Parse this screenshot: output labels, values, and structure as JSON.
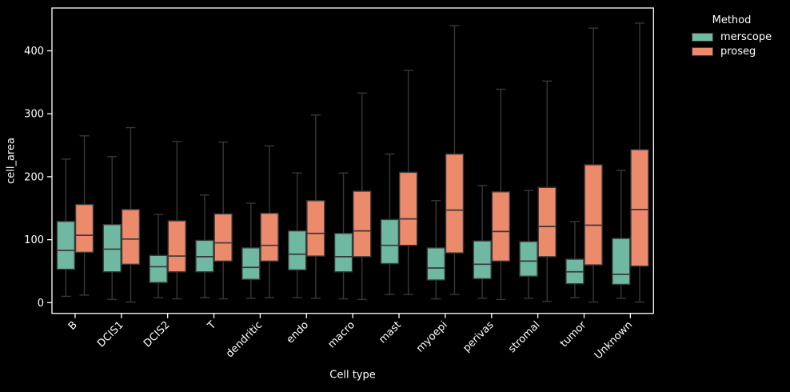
{
  "chart_data": {
    "type": "boxplot-grouped",
    "xlabel": "Cell type",
    "ylabel": "cell_area",
    "legend_title": "Method",
    "legend_position": "upper right outside",
    "background": "#000000",
    "axis_color": "#ffffff",
    "box_edge_color": "#383838",
    "ylim": [
      -17,
      468
    ],
    "yticks": [
      0,
      100,
      200,
      300,
      400
    ],
    "categories": [
      "B",
      "DCIS1",
      "DCIS2",
      "T",
      "dendritic",
      "endo",
      "macro",
      "mast",
      "myoepi",
      "perivas",
      "stromal",
      "tumor",
      "Unknown"
    ],
    "series": [
      {
        "name": "merscope",
        "color": "#6fb9a2",
        "boxes": [
          {
            "lo": 10,
            "q1": 53,
            "med": 83,
            "q3": 129,
            "hi": 228
          },
          {
            "lo": 5,
            "q1": 49,
            "med": 85,
            "q3": 124,
            "hi": 232
          },
          {
            "lo": 8,
            "q1": 32,
            "med": 57,
            "q3": 75,
            "hi": 140
          },
          {
            "lo": 8,
            "q1": 49,
            "med": 73,
            "q3": 99,
            "hi": 171
          },
          {
            "lo": 7,
            "q1": 37,
            "med": 56,
            "q3": 87,
            "hi": 158
          },
          {
            "lo": 8,
            "q1": 52,
            "med": 77,
            "q3": 114,
            "hi": 206
          },
          {
            "lo": 6,
            "q1": 49,
            "med": 73,
            "q3": 110,
            "hi": 206
          },
          {
            "lo": 13,
            "q1": 62,
            "med": 91,
            "q3": 132,
            "hi": 236
          },
          {
            "lo": 6,
            "q1": 36,
            "med": 55,
            "q3": 87,
            "hi": 162
          },
          {
            "lo": 7,
            "q1": 38,
            "med": 61,
            "q3": 98,
            "hi": 186
          },
          {
            "lo": 7,
            "q1": 42,
            "med": 66,
            "q3": 97,
            "hi": 178
          },
          {
            "lo": 8,
            "q1": 30,
            "med": 49,
            "q3": 69,
            "hi": 129
          },
          {
            "lo": 7,
            "q1": 29,
            "med": 45,
            "q3": 102,
            "hi": 210
          }
        ]
      },
      {
        "name": "proseg",
        "color": "#ec8a6c",
        "boxes": [
          {
            "lo": 12,
            "q1": 80,
            "med": 107,
            "q3": 156,
            "hi": 265
          },
          {
            "lo": 1,
            "q1": 61,
            "med": 101,
            "q3": 148,
            "hi": 278
          },
          {
            "lo": 6,
            "q1": 49,
            "med": 74,
            "q3": 130,
            "hi": 256
          },
          {
            "lo": 6,
            "q1": 66,
            "med": 95,
            "q3": 141,
            "hi": 255
          },
          {
            "lo": 8,
            "q1": 66,
            "med": 91,
            "q3": 142,
            "hi": 249
          },
          {
            "lo": 7,
            "q1": 74,
            "med": 110,
            "q3": 162,
            "hi": 298
          },
          {
            "lo": 5,
            "q1": 73,
            "med": 114,
            "q3": 177,
            "hi": 333
          },
          {
            "lo": 13,
            "q1": 91,
            "med": 133,
            "q3": 207,
            "hi": 369
          },
          {
            "lo": 13,
            "q1": 79,
            "med": 147,
            "q3": 236,
            "hi": 440
          },
          {
            "lo": 5,
            "q1": 66,
            "med": 113,
            "q3": 176,
            "hi": 339
          },
          {
            "lo": 2,
            "q1": 73,
            "med": 121,
            "q3": 183,
            "hi": 352
          },
          {
            "lo": 1,
            "q1": 60,
            "med": 123,
            "q3": 219,
            "hi": 436
          },
          {
            "lo": 1,
            "q1": 58,
            "med": 148,
            "q3": 243,
            "hi": 444
          }
        ]
      }
    ]
  }
}
